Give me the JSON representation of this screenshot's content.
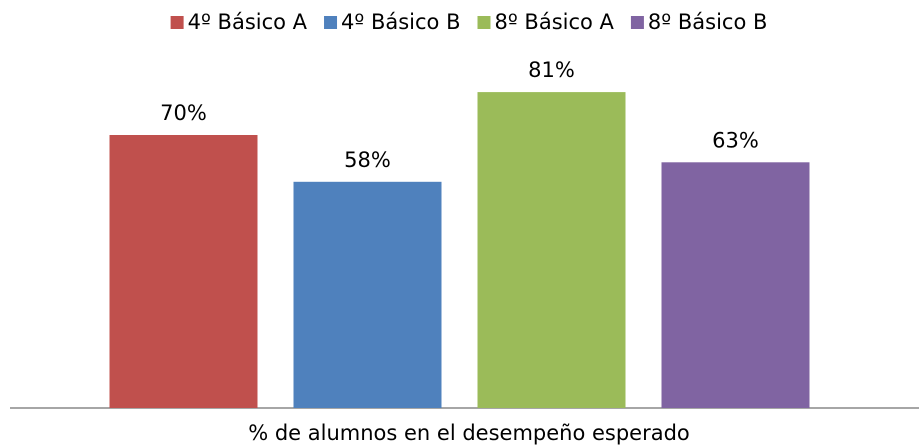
{
  "chart_data": {
    "type": "bar",
    "categories": [
      "% de alumnos en el desempeño esperado"
    ],
    "series": [
      {
        "name": "4º Básico A",
        "color": "#c0504d",
        "values": [
          70
        ],
        "value_labels": [
          "70%"
        ]
      },
      {
        "name": "4º Básico B",
        "color": "#4f81bd",
        "values": [
          58
        ],
        "value_labels": [
          "58%"
        ]
      },
      {
        "name": "8º Básico A",
        "color": "#9bbb59",
        "values": [
          81
        ],
        "value_labels": [
          "81%"
        ]
      },
      {
        "name": "8º Básico B",
        "color": "#8064a2",
        "values": [
          63
        ],
        "value_labels": [
          "63%"
        ]
      }
    ],
    "ylim": [
      0,
      100
    ],
    "legend": "top"
  }
}
